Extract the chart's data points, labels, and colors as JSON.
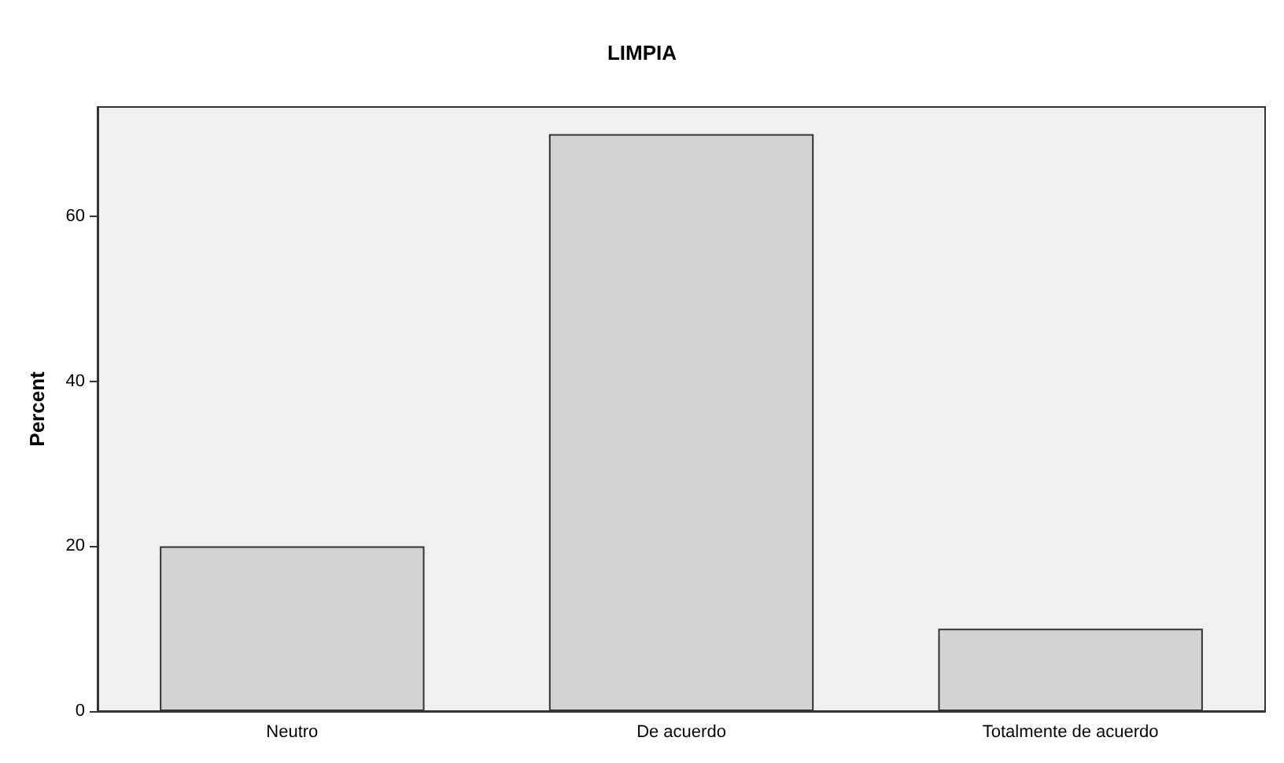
{
  "chart_data": {
    "type": "bar",
    "title": "LIMPIA",
    "ylabel": "Percent",
    "categories": [
      "Neutro",
      "De acuerdo",
      "Totalmente de acuerdo"
    ],
    "series": [
      {
        "color": "#d3d3d3",
        "values": [
          20,
          70,
          10
        ]
      }
    ],
    "ylim": [
      0,
      73.3
    ],
    "yticks": [
      0,
      20,
      40,
      60
    ],
    "grid": false
  }
}
